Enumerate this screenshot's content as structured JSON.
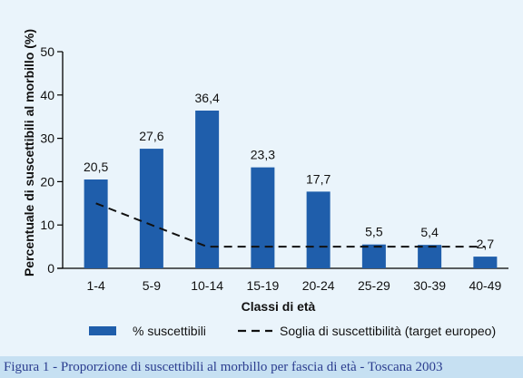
{
  "chart_data": {
    "type": "bar",
    "categories": [
      "1-4",
      "5-9",
      "10-14",
      "15-19",
      "20-24",
      "25-29",
      "30-39",
      "40-49"
    ],
    "series": [
      {
        "name": "% suscettibili",
        "values": [
          20.5,
          27.6,
          36.4,
          23.3,
          17.7,
          5.5,
          5.4,
          2.7
        ],
        "type": "bar"
      },
      {
        "name": "Soglia di suscettibilità (target europeo)",
        "values": [
          15,
          10,
          5,
          5,
          5,
          5,
          5,
          5
        ],
        "type": "line",
        "style": "dashed"
      }
    ],
    "data_labels": [
      "20,5",
      "27,6",
      "36,4",
      "23,3",
      "17,7",
      "5,5",
      "5,4",
      "2,7"
    ],
    "ylabel": "Percentuale di suscettibili al morbillo (%)",
    "xlabel": "Classi di età",
    "ylim": [
      0,
      50
    ],
    "yticks": [
      0,
      10,
      20,
      30,
      40,
      50
    ],
    "grid": false,
    "legend_position": "bottom",
    "colors": {
      "bar": "#1f5eab",
      "line": "#111111",
      "background": "#eaf4fb",
      "caption_bg": "#c6e0f2",
      "caption_text": "#2b3d8f"
    }
  },
  "caption": {
    "label": "Figura 1",
    "text": " - Proporzione di suscettibili al morbillo per fascia di età - Toscana 2003"
  }
}
